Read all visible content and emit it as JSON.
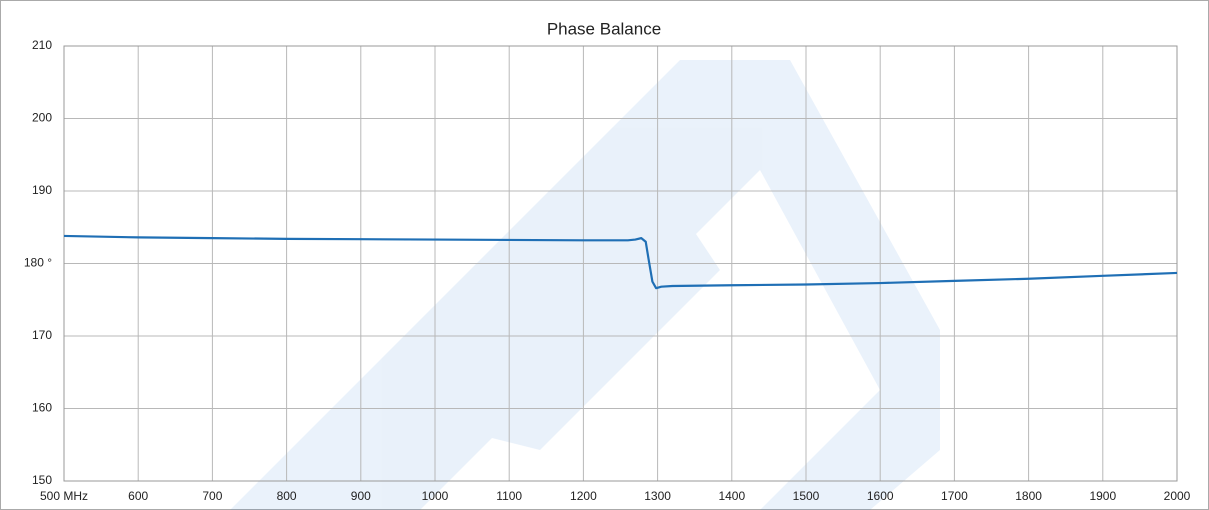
{
  "chart_data": {
    "type": "line",
    "title": "Phase Balance",
    "x": [
      500,
      600,
      700,
      800,
      900,
      1000,
      1100,
      1200,
      1260,
      1270,
      1278,
      1284,
      1288,
      1293,
      1298,
      1305,
      1320,
      1400,
      1500,
      1600,
      1700,
      1800,
      1900,
      2000
    ],
    "series": [
      {
        "color": "#1f6fb5",
        "values": [
          183.8,
          183.6,
          183.5,
          183.4,
          183.35,
          183.3,
          183.25,
          183.2,
          183.2,
          183.3,
          183.5,
          183.0,
          180.5,
          177.5,
          176.6,
          176.8,
          176.9,
          177.0,
          177.1,
          177.3,
          177.6,
          177.9,
          178.3,
          178.7
        ]
      }
    ],
    "xlim": [
      500,
      2000
    ],
    "xticks": [
      {
        "value": 500,
        "label": "500 MHz"
      },
      600,
      700,
      800,
      900,
      1000,
      1100,
      1200,
      1300,
      1400,
      1500,
      1600,
      1700,
      1800,
      1900,
      2000
    ],
    "ylim": [
      150,
      210
    ],
    "yticks": [
      150,
      160,
      {
        "value": 180,
        "label": "180 °"
      },
      170,
      190,
      200,
      210
    ],
    "grid": true
  }
}
